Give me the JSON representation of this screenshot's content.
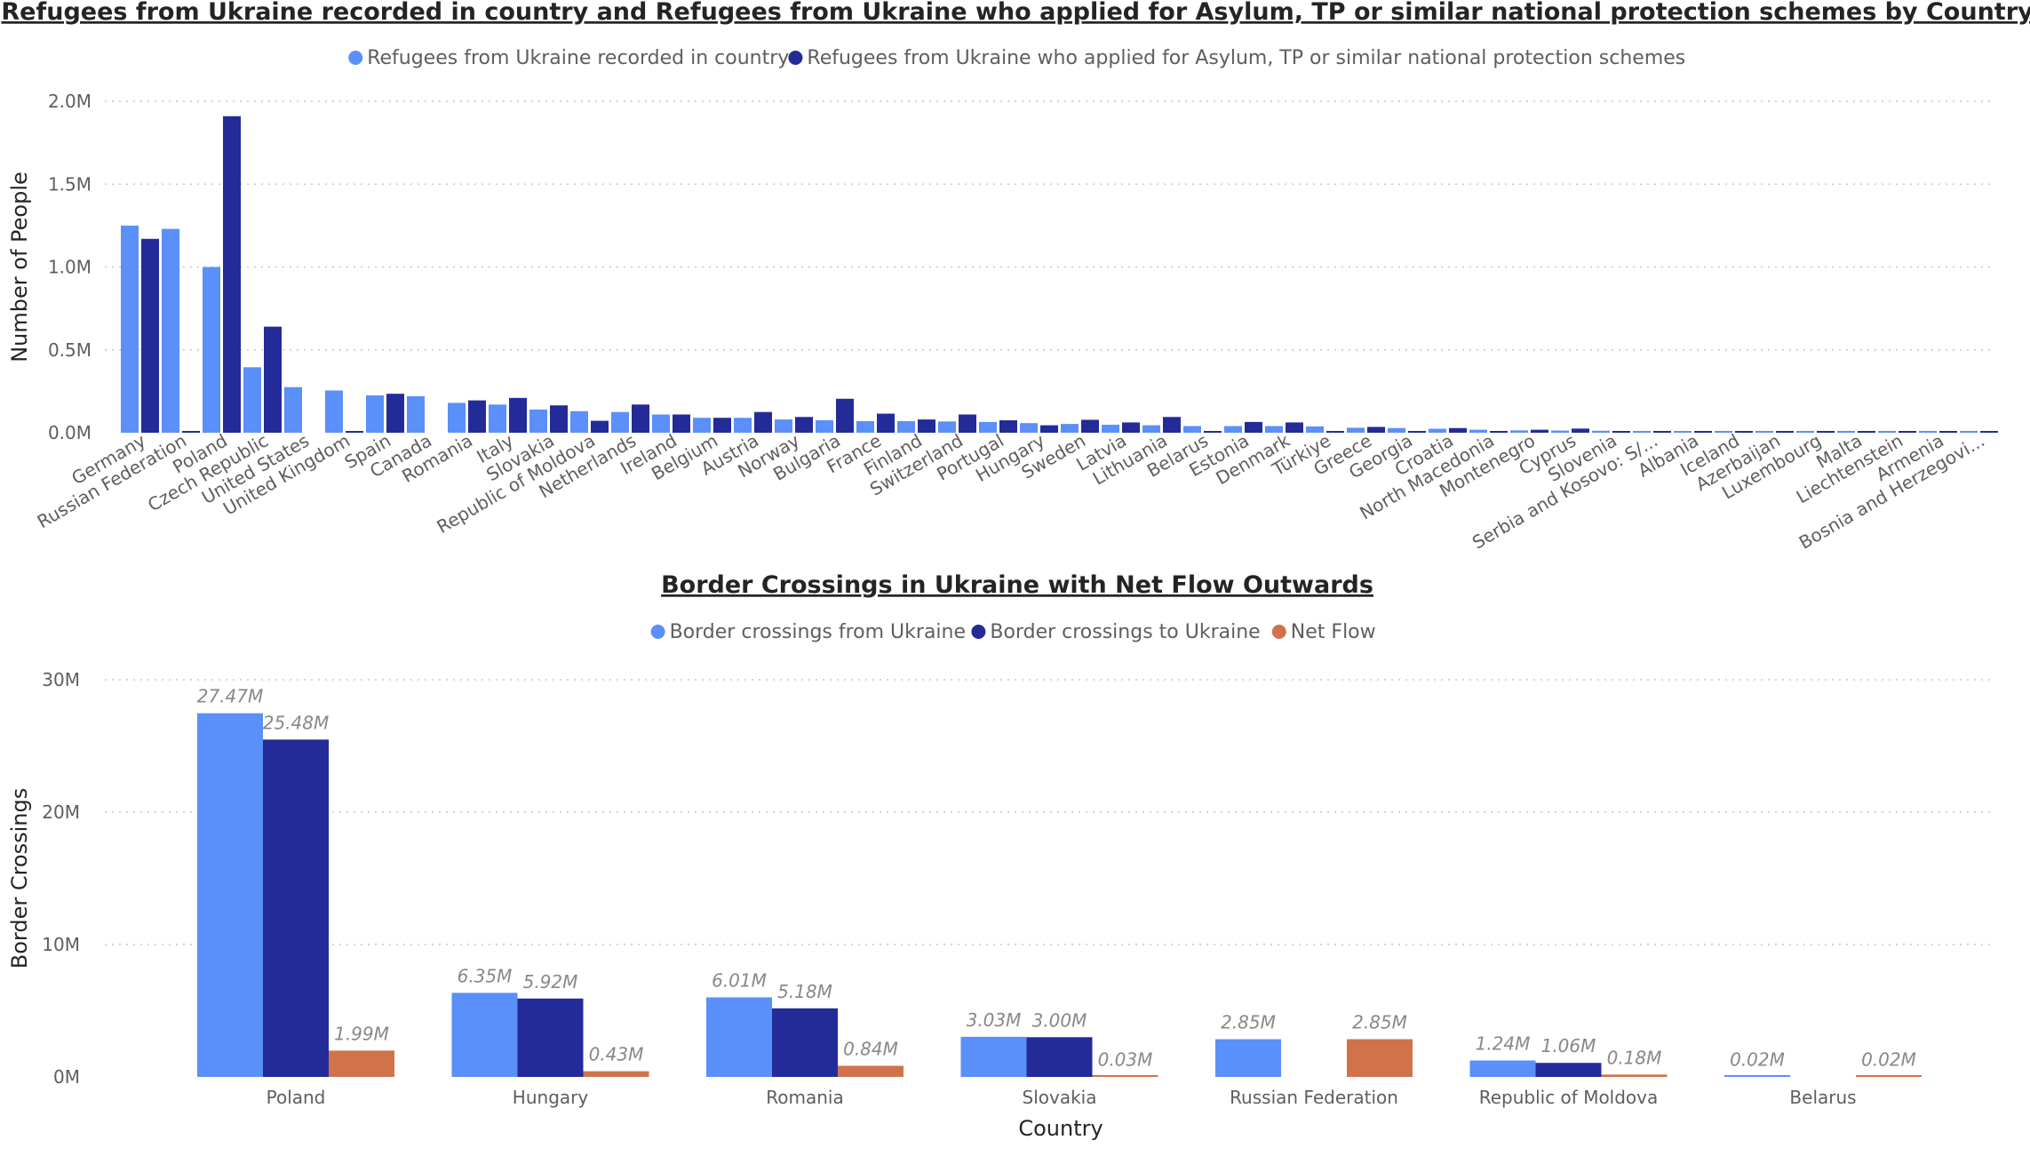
{
  "charts": [
    {
      "type": "bar",
      "title": "Refugees from Ukraine recorded in country and Refugees from Ukraine who applied for Asylum, TP or similar national protection schemes by Country",
      "ylabel": "Number of People",
      "xlabel": "",
      "ylim": [
        0,
        2000000
      ],
      "yticks": [
        {
          "v": 0,
          "label": "0.0M"
        },
        {
          "v": 500000,
          "label": "0.5M"
        },
        {
          "v": 1000000,
          "label": "1.0M"
        },
        {
          "v": 1500000,
          "label": "1.5M"
        },
        {
          "v": 2000000,
          "label": "2.0M"
        }
      ],
      "grid": true,
      "legend": "top-center",
      "categories": [
        "Germany",
        "Russian Federation",
        "Poland",
        "Czech Republic",
        "United States",
        "United Kingdom",
        "Spain",
        "Canada",
        "Romania",
        "Italy",
        "Slovakia",
        "Republic of Moldova",
        "Netherlands",
        "Ireland",
        "Belgium",
        "Austria",
        "Norway",
        "Bulgaria",
        "France",
        "Finland",
        "Switzerland",
        "Portugal",
        "Hungary",
        "Sweden",
        "Latvia",
        "Lithuania",
        "Belarus",
        "Estonia",
        "Denmark",
        "Türkiye",
        "Greece",
        "Georgia",
        "Croatia",
        "North Macedonia",
        "Montenegro",
        "Cyprus",
        "Slovenia",
        "Serbia and Kosovo: S/...",
        "Albania",
        "Iceland",
        "Azerbaijan",
        "Luxembourg",
        "Malta",
        "Liechtenstein",
        "Armenia",
        "Bosnia and Herzegovi..."
      ],
      "series": [
        {
          "name": "Refugees from Ukraine recorded in country",
          "color": "#5B8FF9",
          "values": [
            1250000,
            1230000,
            1000000,
            395000,
            275000,
            255000,
            225000,
            220000,
            180000,
            170000,
            140000,
            130000,
            125000,
            110000,
            90000,
            90000,
            80000,
            75000,
            70000,
            70000,
            68000,
            65000,
            58000,
            53000,
            48000,
            45000,
            40000,
            40000,
            40000,
            38000,
            30000,
            28000,
            24000,
            18000,
            14000,
            13000,
            12000,
            8000,
            6000,
            5000,
            5000,
            5000,
            4000,
            4000,
            4000,
            3000
          ]
        },
        {
          "name": "Refugees from Ukraine who applied for Asylum, TP or similar national protection schemes",
          "color": "#232B99",
          "values": [
            1170000,
            10000,
            1910000,
            640000,
            0,
            8000,
            235000,
            0,
            195000,
            210000,
            165000,
            72000,
            170000,
            110000,
            90000,
            125000,
            95000,
            205000,
            115000,
            80000,
            110000,
            75000,
            45000,
            78000,
            62000,
            95000,
            8000,
            65000,
            62000,
            8000,
            35000,
            10000,
            28000,
            8000,
            18000,
            25000,
            10000,
            8000,
            3000,
            3000,
            3000,
            3000,
            3000,
            3000,
            3000,
            3000
          ]
        }
      ]
    },
    {
      "type": "bar",
      "title": "Border Crossings in Ukraine with Net Flow Outwards",
      "ylabel": "Border Crossings",
      "xlabel": "Country",
      "ylim": [
        0,
        30000000
      ],
      "yticks": [
        {
          "v": 0,
          "label": "0M"
        },
        {
          "v": 10000000,
          "label": "10M"
        },
        {
          "v": 20000000,
          "label": "20M"
        },
        {
          "v": 30000000,
          "label": "30M"
        }
      ],
      "grid": true,
      "legend": "top-center",
      "categories": [
        "Poland",
        "Hungary",
        "Romania",
        "Slovakia",
        "Russian Federation",
        "Republic of Moldova",
        "Belarus"
      ],
      "series": [
        {
          "name": "Border crossings from Ukraine",
          "color": "#5B8FF9",
          "values": [
            27470000,
            6350000,
            6010000,
            3030000,
            2850000,
            1240000,
            20000
          ],
          "labels": [
            "27.47M",
            "6.35M",
            "6.01M",
            "3.03M",
            "2.85M",
            "1.24M",
            "0.02M"
          ]
        },
        {
          "name": "Border crossings to Ukraine",
          "color": "#232B99",
          "values": [
            25480000,
            5920000,
            5180000,
            3000000,
            null,
            1060000,
            null
          ],
          "labels": [
            "25.48M",
            "5.92M",
            "5.18M",
            "3.00M",
            "",
            "1.06M",
            ""
          ]
        },
        {
          "name": "Net Flow",
          "color": "#D1734A",
          "values": [
            1990000,
            430000,
            840000,
            30000,
            2850000,
            180000,
            20000
          ],
          "labels": [
            "1.99M",
            "0.43M",
            "0.84M",
            "0.03M",
            "2.85M",
            "0.18M",
            "0.02M"
          ]
        }
      ]
    }
  ]
}
